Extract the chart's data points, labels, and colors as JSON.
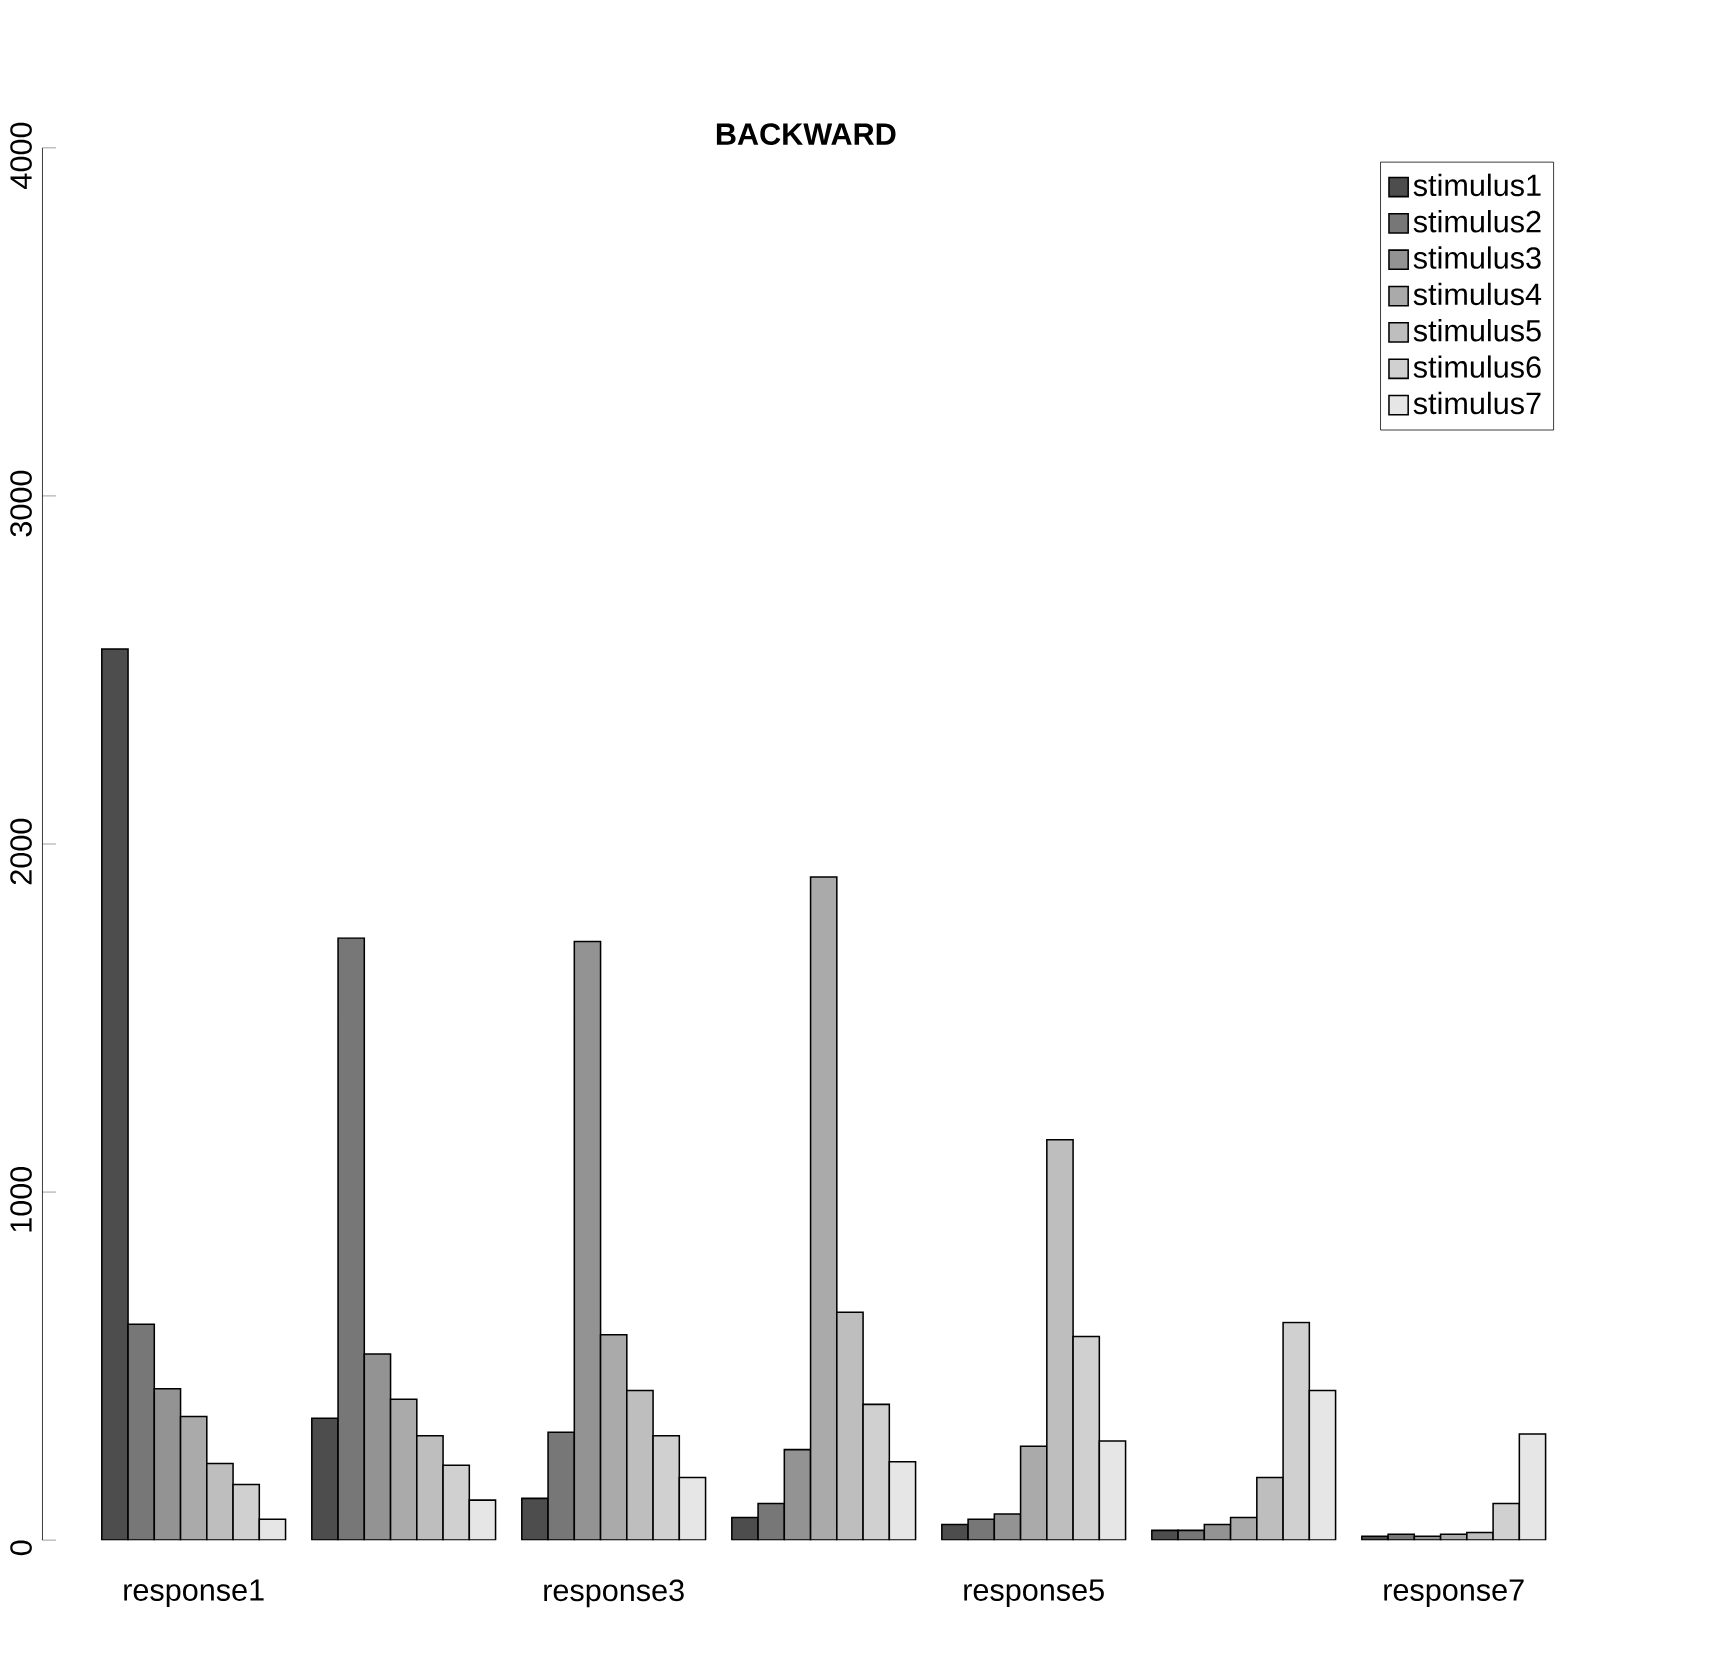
{
  "chart_data": {
    "type": "bar",
    "title": "BACKWARD",
    "categories": [
      "response1",
      null,
      "response3",
      null,
      "response5",
      null,
      "response7"
    ],
    "series": [
      {
        "name": "stimulus1",
        "color": "#4d4d4d",
        "values": [
          2560,
          350,
          120,
          65,
          45,
          28,
          11
        ]
      },
      {
        "name": "stimulus2",
        "color": "#777777",
        "values": [
          620,
          1730,
          310,
          105,
          60,
          28,
          17
        ]
      },
      {
        "name": "stimulus3",
        "color": "#939393",
        "values": [
          435,
          535,
          1720,
          260,
          75,
          45,
          11
        ]
      },
      {
        "name": "stimulus4",
        "color": "#aaaaaa",
        "values": [
          355,
          405,
          590,
          1905,
          270,
          65,
          17
        ]
      },
      {
        "name": "stimulus5",
        "color": "#bebebe",
        "values": [
          220,
          300,
          430,
          655,
          1150,
          180,
          22
        ]
      },
      {
        "name": "stimulus6",
        "color": "#d0d0d0",
        "values": [
          160,
          215,
          300,
          390,
          585,
          625,
          105
        ]
      },
      {
        "name": "stimulus7",
        "color": "#e6e6e6",
        "values": [
          60,
          115,
          180,
          225,
          285,
          430,
          305
        ]
      }
    ],
    "ylim": [
      0,
      4000
    ],
    "yticks": [
      0,
      1000,
      2000,
      3000,
      4000
    ],
    "grid": false,
    "legend": "top right"
  }
}
